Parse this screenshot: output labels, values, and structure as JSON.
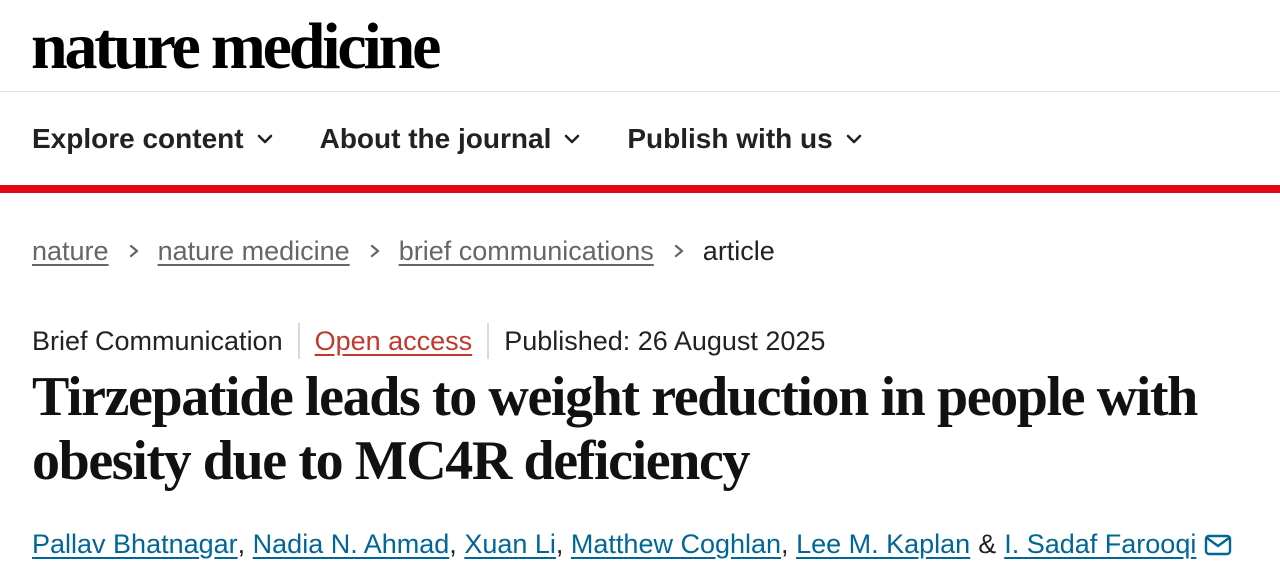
{
  "header": {
    "logo": "nature medicine"
  },
  "nav": {
    "items": [
      {
        "label": "Explore content",
        "icon": "chevron-down-icon"
      },
      {
        "label": "About the journal",
        "icon": "chevron-down-icon"
      },
      {
        "label": "Publish with us",
        "icon": "chevron-down-icon"
      }
    ]
  },
  "breadcrumb": {
    "items": [
      "nature",
      "nature medicine",
      "brief communications"
    ],
    "current": "article"
  },
  "article": {
    "type": "Brief Communication",
    "access": "Open access",
    "published": "Published: 26 August 2025",
    "title": "Tirzepatide leads to weight reduction in people with obesity due to MC4R deficiency",
    "authors": [
      "Pallav Bhatnagar",
      "Nadia N. Ahmad",
      "Xuan Li",
      "Matthew Coghlan",
      "Lee M. Kaplan"
    ],
    "author_separator": ",",
    "ampersand": "&",
    "corresponding_author": "I. Sadaf Farooqi"
  },
  "colors": {
    "accent_red": "#e30613",
    "link_blue": "#006699",
    "open_access": "#c0392b"
  }
}
